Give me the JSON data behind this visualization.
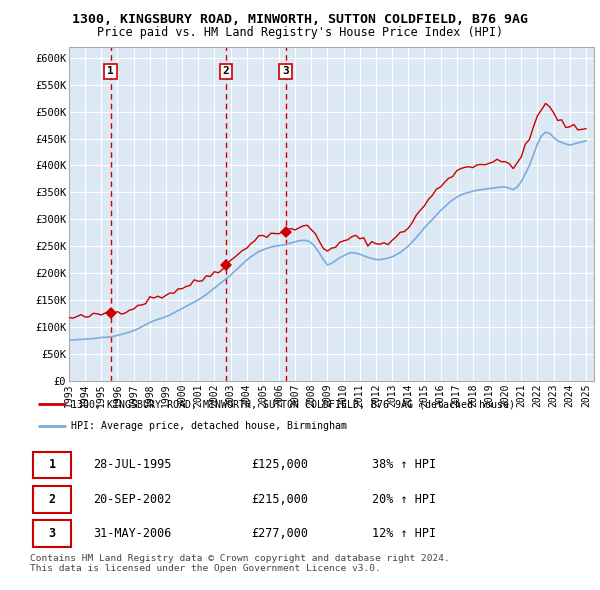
{
  "title_line1": "1300, KINGSBURY ROAD, MINWORTH, SUTTON COLDFIELD, B76 9AG",
  "title_line2": "Price paid vs. HM Land Registry's House Price Index (HPI)",
  "ylabel_ticks": [
    "£0",
    "£50K",
    "£100K",
    "£150K",
    "£200K",
    "£250K",
    "£300K",
    "£350K",
    "£400K",
    "£450K",
    "£500K",
    "£550K",
    "£600K"
  ],
  "ytick_vals": [
    0,
    50000,
    100000,
    150000,
    200000,
    250000,
    300000,
    350000,
    400000,
    450000,
    500000,
    550000,
    600000
  ],
  "ylim": [
    0,
    620000
  ],
  "sale_points": [
    {
      "date_num": 1995.57,
      "price": 125000,
      "label": "1"
    },
    {
      "date_num": 2002.72,
      "price": 215000,
      "label": "2"
    },
    {
      "date_num": 2006.41,
      "price": 277000,
      "label": "3"
    }
  ],
  "vline_dates": [
    1995.57,
    2002.72,
    2006.41
  ],
  "hpi_color": "#7aaddc",
  "price_color": "#cc0000",
  "vline_color": "#cc0000",
  "bg_color": "#dce9f5",
  "grid_color": "#ffffff",
  "legend_property_label": "1300, KINGSBURY ROAD, MINWORTH, SUTTON COLDFIELD, B76 9AG (detached house)",
  "legend_hpi_label": "HPI: Average price, detached house, Birmingham",
  "table_rows": [
    {
      "num": "1",
      "date": "28-JUL-1995",
      "price": "£125,000",
      "hpi": "38% ↑ HPI"
    },
    {
      "num": "2",
      "date": "20-SEP-2002",
      "price": "£215,000",
      "hpi": "20% ↑ HPI"
    },
    {
      "num": "3",
      "date": "31-MAY-2006",
      "price": "£277,000",
      "hpi": "12% ↑ HPI"
    }
  ],
  "footer_text": "Contains HM Land Registry data © Crown copyright and database right 2024.\nThis data is licensed under the Open Government Licence v3.0.",
  "xlim_start": 1993.0,
  "xlim_end": 2025.5,
  "xtick_years": [
    1993,
    1994,
    1995,
    1996,
    1997,
    1998,
    1999,
    2000,
    2001,
    2002,
    2003,
    2004,
    2005,
    2006,
    2007,
    2008,
    2009,
    2010,
    2011,
    2012,
    2013,
    2014,
    2015,
    2016,
    2017,
    2018,
    2019,
    2020,
    2021,
    2022,
    2023,
    2024,
    2025
  ]
}
